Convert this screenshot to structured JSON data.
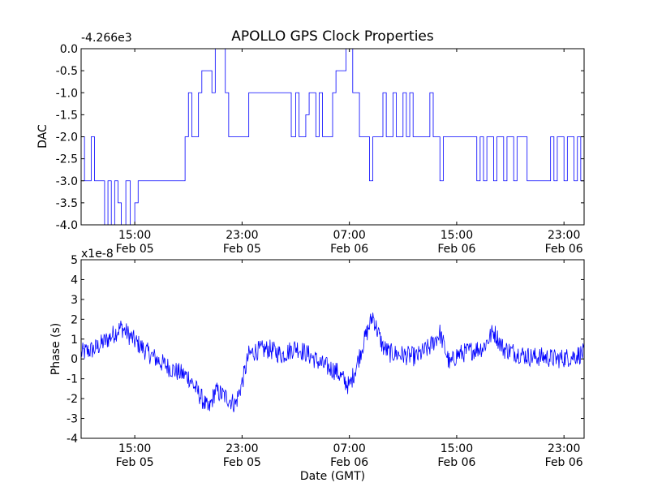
{
  "chart_data": [
    {
      "type": "line",
      "title": "APOLLO GPS Clock Properties",
      "ylabel": "DAC",
      "xlabel": "",
      "offset_label": "-4.266e3",
      "ylim": [
        -4.0,
        0.0
      ],
      "yticks": [
        0.0,
        -0.5,
        -1.0,
        -1.5,
        -2.0,
        -2.5,
        -3.0,
        -3.5,
        -4.0
      ],
      "ytick_labels": [
        "0.0",
        "-0.5",
        "-1.0",
        "-1.5",
        "-2.0",
        "-2.5",
        "-3.0",
        "-3.5",
        "-4.0"
      ],
      "xlim": [
        "2010-02-05T11:00",
        "2010-02-07T00:30"
      ],
      "xticks": [
        "2010-02-05T15:00",
        "2010-02-05T23:00",
        "2010-02-06T07:00",
        "2010-02-06T15:00",
        "2010-02-06T23:00"
      ],
      "xtick_labels": [
        [
          "15:00",
          "Feb 05"
        ],
        [
          "23:00",
          "Feb 05"
        ],
        [
          "07:00",
          "Feb 06"
        ],
        [
          "15:00",
          "Feb 06"
        ],
        [
          "23:00",
          "Feb 06"
        ]
      ],
      "series": [
        {
          "color": "#0000ff",
          "x": [
            "2010-02-05T11:00",
            "2010-02-05T11:15",
            "2010-02-05T11:45",
            "2010-02-05T12:00",
            "2010-02-05T12:45",
            "2010-02-05T13:00",
            "2010-02-05T13:15",
            "2010-02-05T13:30",
            "2010-02-05T13:45",
            "2010-02-05T14:00",
            "2010-02-05T14:20",
            "2010-02-05T14:40",
            "2010-02-05T15:00",
            "2010-02-05T15:15",
            "2010-02-05T18:45",
            "2010-02-05T19:00",
            "2010-02-05T19:15",
            "2010-02-05T19:45",
            "2010-02-05T20:00",
            "2010-02-05T20:45",
            "2010-02-05T21:00",
            "2010-02-05T21:45",
            "2010-02-05T22:00",
            "2010-02-05T23:15",
            "2010-02-05T23:30",
            "2010-02-06T02:40",
            "2010-02-06T03:00",
            "2010-02-06T03:15",
            "2010-02-06T03:45",
            "2010-02-06T04:00",
            "2010-02-06T04:30",
            "2010-02-06T04:45",
            "2010-02-06T05:00",
            "2010-02-06T05:45",
            "2010-02-06T06:00",
            "2010-02-06T06:45",
            "2010-02-06T07:15",
            "2010-02-06T07:45",
            "2010-02-06T08:30",
            "2010-02-06T08:45",
            "2010-02-06T09:30",
            "2010-02-06T09:45",
            "2010-02-06T10:15",
            "2010-02-06T10:30",
            "2010-02-06T11:00",
            "2010-02-06T11:15",
            "2010-02-06T11:30",
            "2010-02-06T11:45",
            "2010-02-06T12:00",
            "2010-02-06T13:00",
            "2010-02-06T13:15",
            "2010-02-06T13:30",
            "2010-02-06T13:45",
            "2010-02-06T14:00",
            "2010-02-06T15:00",
            "2010-02-06T16:30",
            "2010-02-06T16:45",
            "2010-02-06T17:00",
            "2010-02-06T17:15",
            "2010-02-06T17:45",
            "2010-02-06T18:00",
            "2010-02-06T18:30",
            "2010-02-06T18:45",
            "2010-02-06T19:15",
            "2010-02-06T19:30",
            "2010-02-06T20:00",
            "2010-02-06T20:15",
            "2010-02-06T22:00",
            "2010-02-06T22:15",
            "2010-02-06T22:30",
            "2010-02-06T23:00",
            "2010-02-06T23:15",
            "2010-02-06T23:45",
            "2010-02-07T00:00",
            "2010-02-07T00:15",
            "2010-02-07T00:30"
          ],
          "y": [
            -2.0,
            -3.0,
            -2.0,
            -3.0,
            -4.0,
            -3.0,
            -4.0,
            -3.0,
            -3.5,
            -4.0,
            -3.0,
            -4.0,
            -3.5,
            -3.0,
            -2.0,
            -1.0,
            -2.0,
            -1.0,
            -0.5,
            -1.0,
            0.0,
            -1.0,
            -2.0,
            -2.0,
            -1.0,
            -2.0,
            -1.0,
            -2.0,
            -1.5,
            -1.0,
            -2.0,
            -1.0,
            -2.0,
            -1.0,
            -0.5,
            0.0,
            -1.0,
            -2.0,
            -3.0,
            -2.0,
            -1.0,
            -2.0,
            -1.0,
            -2.0,
            -1.0,
            -2.0,
            -1.0,
            -2.0,
            -2.0,
            -1.0,
            -2.0,
            -2.0,
            -3.0,
            -2.0,
            -2.0,
            -3.0,
            -2.0,
            -3.0,
            -2.0,
            -3.0,
            -2.0,
            -3.0,
            -2.0,
            -3.0,
            -2.0,
            -2.0,
            -3.0,
            -2.0,
            -3.0,
            -2.0,
            -3.0,
            -2.0,
            -3.0,
            -2.0,
            -3.0,
            -2.0
          ]
        }
      ]
    },
    {
      "type": "line",
      "title": "",
      "ylabel": "Phase (s)",
      "xlabel": "Date (GMT)",
      "offset_label": "x1e-8",
      "ylim": [
        -4,
        5
      ],
      "yticks": [
        5,
        4,
        3,
        2,
        1,
        0,
        -1,
        -2,
        -3,
        -4
      ],
      "ytick_labels": [
        "5",
        "4",
        "3",
        "2",
        "1",
        "0",
        "-1",
        "-2",
        "-3",
        "-4"
      ],
      "xlim": [
        "2010-02-05T11:00",
        "2010-02-07T00:30"
      ],
      "xticks": [
        "2010-02-05T15:00",
        "2010-02-05T23:00",
        "2010-02-06T07:00",
        "2010-02-06T15:00",
        "2010-02-06T23:00"
      ],
      "xtick_labels": [
        [
          "15:00",
          "Feb 05"
        ],
        [
          "23:00",
          "Feb 05"
        ],
        [
          "07:00",
          "Feb 06"
        ],
        [
          "15:00",
          "Feb 06"
        ],
        [
          "23:00",
          "Feb 06"
        ]
      ],
      "series": [
        {
          "color": "#0000ff",
          "x": [
            "2010-02-05T11:00",
            "2010-02-05T12:00",
            "2010-02-05T13:00",
            "2010-02-05T14:00",
            "2010-02-05T15:00",
            "2010-02-05T16:00",
            "2010-02-05T17:00",
            "2010-02-05T18:00",
            "2010-02-05T19:00",
            "2010-02-05T20:00",
            "2010-02-05T20:30",
            "2010-02-05T21:00",
            "2010-02-05T22:00",
            "2010-02-05T22:30",
            "2010-02-05T23:00",
            "2010-02-05T23:30",
            "2010-02-06T00:00",
            "2010-02-06T01:00",
            "2010-02-06T02:00",
            "2010-02-06T03:00",
            "2010-02-06T04:00",
            "2010-02-06T05:00",
            "2010-02-06T06:00",
            "2010-02-06T07:00",
            "2010-02-06T07:30",
            "2010-02-06T08:00",
            "2010-02-06T08:45",
            "2010-02-06T09:00",
            "2010-02-06T09:30",
            "2010-02-06T10:00",
            "2010-02-06T11:00",
            "2010-02-06T12:00",
            "2010-02-06T13:00",
            "2010-02-06T13:45",
            "2010-02-06T14:30",
            "2010-02-06T15:00",
            "2010-02-06T16:00",
            "2010-02-06T17:00",
            "2010-02-06T17:45",
            "2010-02-06T18:30",
            "2010-02-06T19:30",
            "2010-02-06T20:30",
            "2010-02-06T21:30",
            "2010-02-06T22:30",
            "2010-02-06T23:30",
            "2010-02-07T00:30"
          ],
          "y": [
            0.3,
            0.5,
            1.0,
            1.6,
            0.9,
            0.3,
            -0.2,
            -0.6,
            -0.9,
            -2.0,
            -2.6,
            -1.6,
            -2.0,
            -2.3,
            -1.2,
            0.2,
            0.4,
            0.5,
            0.2,
            0.6,
            0.2,
            -0.3,
            -0.6,
            -1.4,
            -0.4,
            0.7,
            2.2,
            1.6,
            0.6,
            0.3,
            0.2,
            0.1,
            0.6,
            1.3,
            -0.3,
            0.2,
            0.4,
            0.6,
            1.4,
            0.5,
            0.3,
            0.1,
            0.1,
            0.0,
            0.1,
            0.3
          ]
        }
      ]
    }
  ]
}
